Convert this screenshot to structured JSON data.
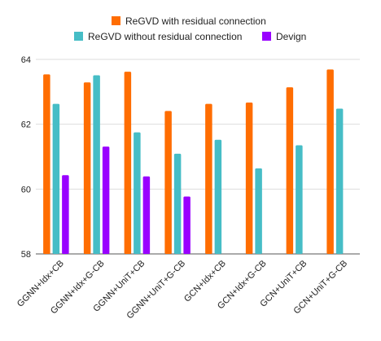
{
  "chart_data": {
    "type": "bar",
    "categories": [
      "GGNN+Idx+CB",
      "GGNN+Idx+G-CB",
      "GGNN+UniT+CB",
      "GGNN+UniT+G-CB",
      "GCN+Idx+CB",
      "GCN+Idx+G-CB",
      "GCN+UniT+CB",
      "GCN+UniT+G-CB"
    ],
    "series": [
      {
        "name": "ReGVD  with residual connection",
        "color": "#ff6d01",
        "values": [
          63.54,
          63.29,
          63.62,
          62.41,
          62.63,
          62.67,
          63.14,
          63.69
        ]
      },
      {
        "name": "ReGVD without residual connection",
        "color": "#46bdc6",
        "values": [
          62.63,
          63.51,
          61.75,
          61.09,
          61.52,
          60.64,
          61.35,
          62.48
        ]
      },
      {
        "name": "Devign",
        "color": "#9900ff",
        "values": [
          60.43,
          61.31,
          60.39,
          null,
          null,
          null,
          null,
          null
        ]
      },
      {
        "name": "",
        "color": "#9900ff",
        "values": [
          null,
          null,
          null,
          59.77,
          null,
          null,
          null,
          null
        ],
        "merge_into": 2
      }
    ],
    "yticks": [
      58,
      60,
      62,
      64
    ],
    "ylim": [
      58,
      64
    ],
    "grid": true,
    "legend_position": "top"
  }
}
